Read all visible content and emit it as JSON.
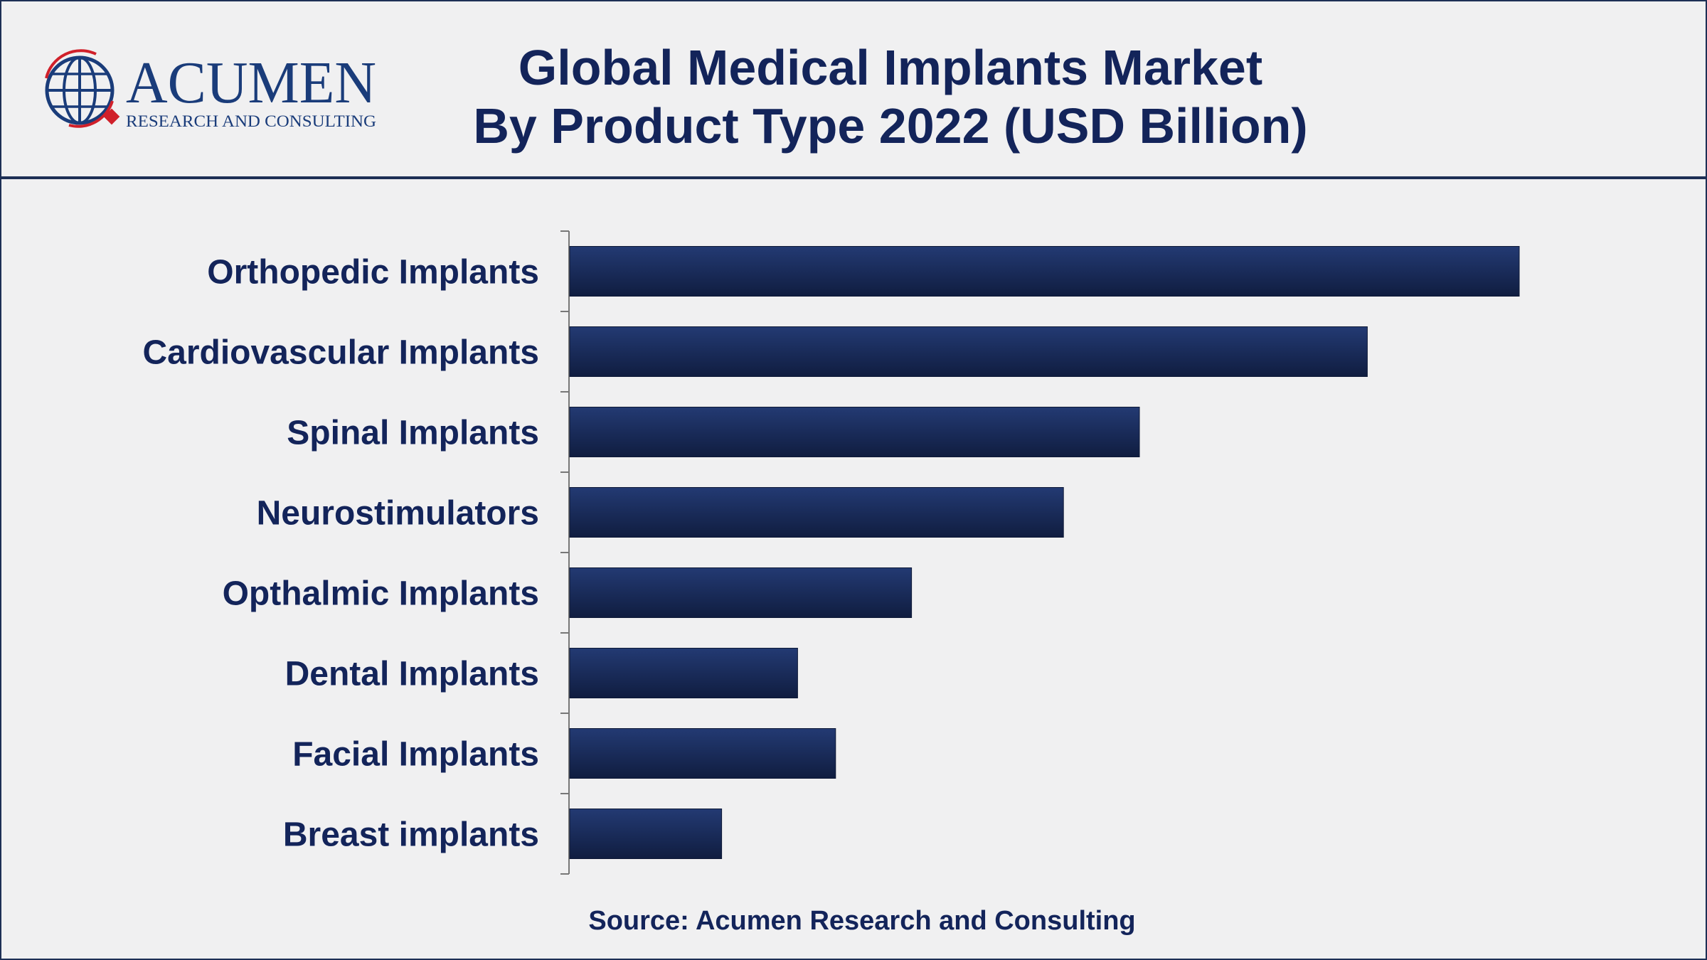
{
  "brand": {
    "name": "ACUMEN",
    "tagline": "RESEARCH AND CONSULTING"
  },
  "header": {
    "title_line1": "Global Medical Implants Market",
    "title_line2": "By Product Type 2022 (USD Billion)"
  },
  "footer": {
    "source": "Source: Acumen Research and Consulting"
  },
  "colors": {
    "bar_top": "#233a73",
    "bar_bottom": "#101d40",
    "text": "#13245a",
    "border": "#1d2f55",
    "logo_red": "#d0202a"
  },
  "chart_data": {
    "type": "bar",
    "orientation": "horizontal",
    "title": "Global Medical Implants Market By Product Type 2022 (USD Billion)",
    "categories": [
      "Orthopedic Implants",
      "Cardiovascular Implants",
      "Spinal Implants",
      "Neurostimulators",
      "Opthalmic Implants",
      "Dental Implants",
      "Facial Implants",
      "Breast implants"
    ],
    "values": [
      100,
      84,
      60,
      52,
      36,
      24,
      28,
      16
    ],
    "value_note": "relative values estimated from bar lengths; no value axis is printed",
    "axis_ticks_shown": false,
    "grid": false,
    "legend": "none"
  }
}
